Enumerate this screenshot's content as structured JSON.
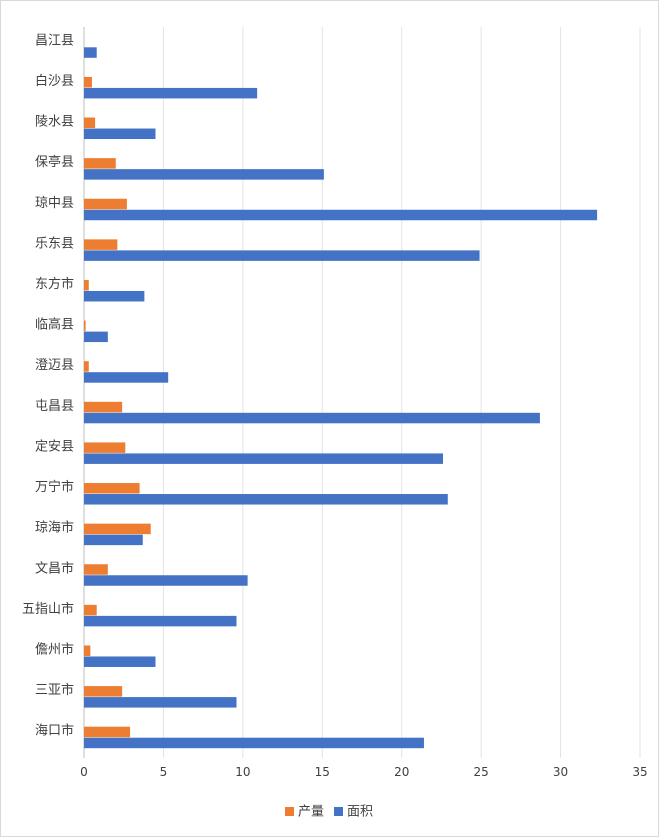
{
  "chart_data": {
    "type": "bar",
    "orientation": "horizontal",
    "title": "",
    "xlabel": "",
    "ylabel": "",
    "xlim": [
      0,
      35
    ],
    "xticks": [
      0,
      5,
      10,
      15,
      20,
      25,
      30,
      35
    ],
    "grid": "vertical",
    "legend_position": "bottom",
    "categories": [
      "昌江县",
      "白沙县",
      "陵水县",
      "保亭县",
      "琼中县",
      "乐东县",
      "东方市",
      "临高县",
      "澄迈县",
      "屯昌县",
      "定安县",
      "万宁市",
      "琼海市",
      "文昌市",
      "五指山市",
      "儋州市",
      "三亚市",
      "海口市"
    ],
    "series": [
      {
        "name": "产量",
        "color": "#ED7D31",
        "values": [
          0.0,
          0.5,
          0.7,
          2.0,
          2.7,
          2.1,
          0.3,
          0.1,
          0.3,
          2.4,
          2.6,
          3.5,
          4.2,
          1.5,
          0.8,
          0.4,
          2.4,
          2.9
        ]
      },
      {
        "name": "面积",
        "color": "#4472C4",
        "values": [
          0.8,
          10.9,
          4.5,
          15.1,
          32.3,
          24.9,
          3.8,
          1.5,
          5.3,
          28.7,
          22.6,
          22.9,
          3.7,
          10.3,
          9.6,
          4.5,
          9.6,
          21.4
        ]
      }
    ]
  }
}
